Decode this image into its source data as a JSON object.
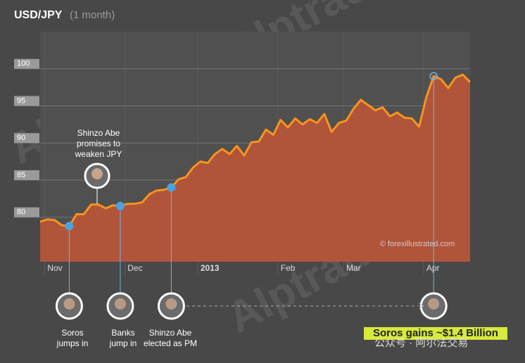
{
  "chart_data": {
    "type": "area",
    "title": "USD/JPY",
    "subtitle": "(1 month)",
    "categories": [
      null,
      "Nov",
      null,
      null,
      null,
      null,
      null,
      null,
      null,
      null,
      null,
      null,
      "Dec",
      null,
      null,
      null,
      null,
      null,
      null,
      null,
      null,
      null,
      "2013",
      null,
      null,
      null,
      null,
      null,
      null,
      null,
      null,
      null,
      null,
      "Feb",
      null,
      null,
      null,
      null,
      null,
      null,
      null,
      null,
      "Mar",
      null,
      null,
      null,
      null,
      null,
      null,
      null,
      null,
      null,
      null,
      "Apr",
      null,
      null,
      null,
      null,
      null,
      null
    ],
    "values": [
      79.4,
      79.7,
      79.6,
      78.9,
      78.8,
      80.4,
      80.4,
      81.7,
      81.7,
      81.2,
      81.6,
      81.5,
      81.8,
      81.8,
      82.0,
      83.1,
      83.6,
      83.7,
      84.0,
      85.1,
      85.4,
      86.7,
      87.5,
      87.3,
      88.5,
      89.2,
      88.5,
      89.6,
      88.3,
      90.1,
      90.2,
      91.8,
      91.1,
      93.1,
      92.1,
      93.3,
      92.5,
      93.2,
      92.7,
      93.9,
      91.5,
      92.7,
      93.0,
      94.6,
      95.8,
      95.1,
      94.4,
      94.8,
      93.6,
      94.1,
      93.4,
      93.3,
      92.2,
      96.2,
      99.0,
      98.6,
      97.4,
      98.8,
      99.2,
      98.2
    ],
    "color": "#f7941d",
    "fill_color": "#b0553a",
    "ylim": [
      74,
      105
    ],
    "yticks": [
      80,
      85,
      90,
      95,
      100
    ],
    "grid": true,
    "note": "Shinzo Abe promises to weaken JPY",
    "annotations": [
      "Soros jumps in",
      "Banks jump in",
      "Shinzo Abe elected as PM",
      "Soros gains ~$1.4 Billion"
    ],
    "source": "© forexillustrated.com",
    "watermark": "Alptrade",
    "channel": "公众号 · 阿尔法交易"
  }
}
